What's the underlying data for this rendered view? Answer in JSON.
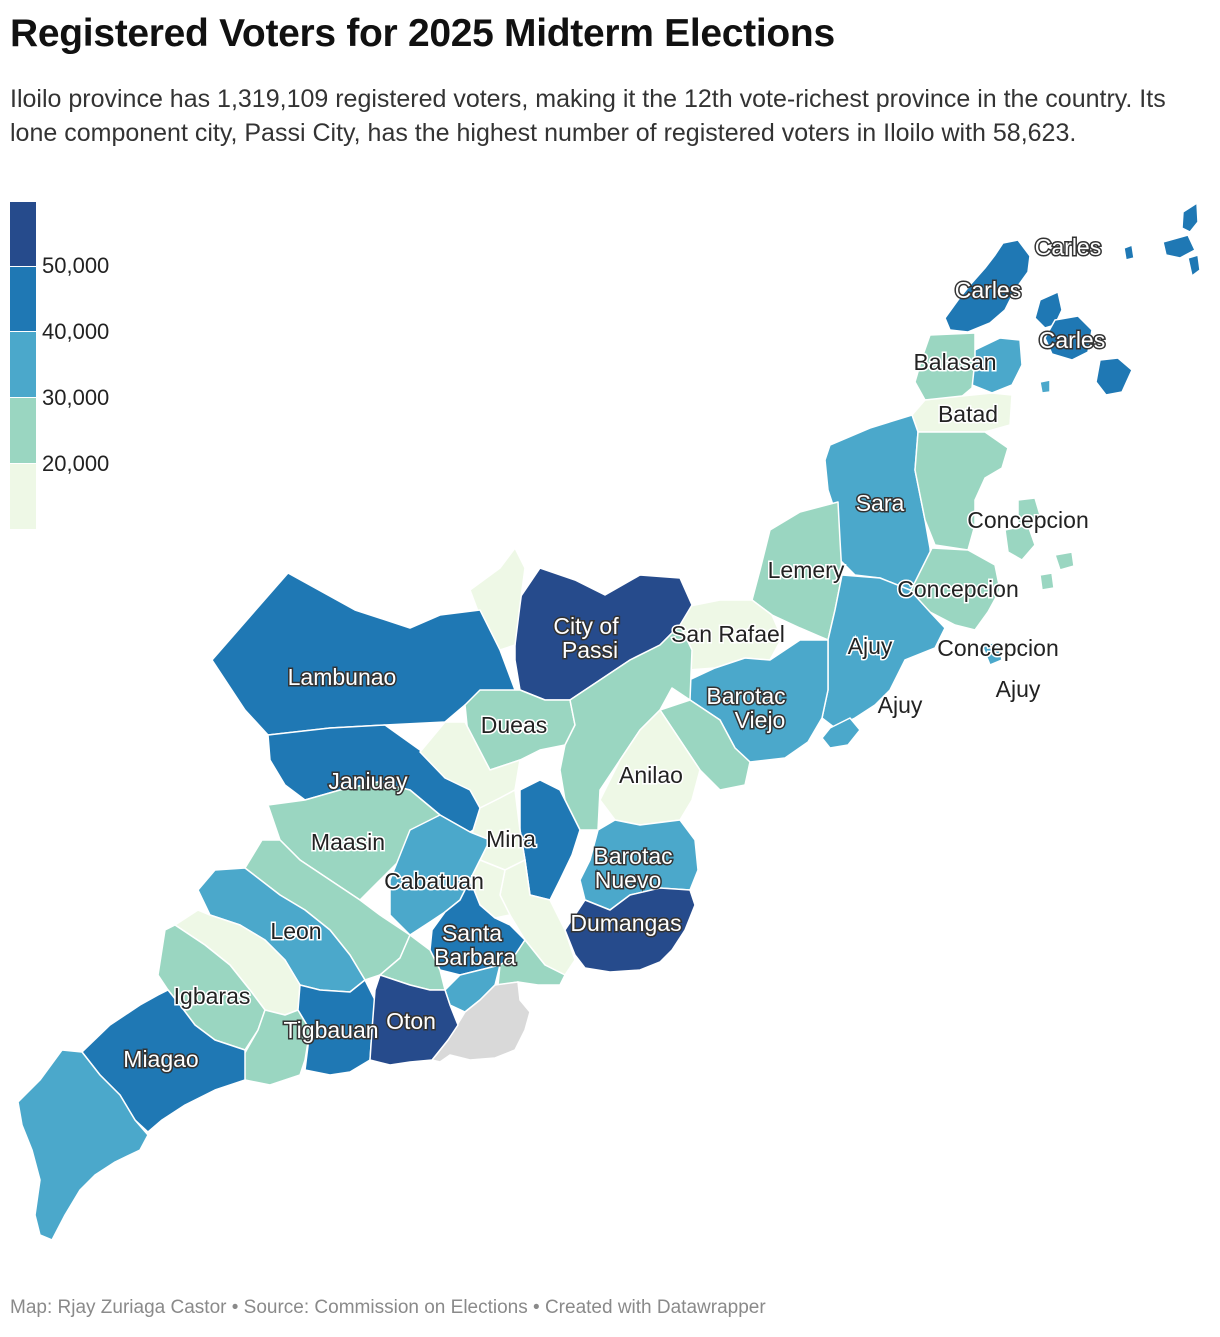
{
  "title": "Registered Voters for 2025 Midterm Elections",
  "subtitle": "Iloilo province has 1,319,109 registered voters, making it the 12th vote-richest province in the country. Its lone component city, Passi City, has the highest number of registered voters in Iloilo with 58,623.",
  "legend": {
    "ticks": [
      "50,000",
      "40,000",
      "30,000",
      "20,000"
    ],
    "colors": [
      "#264b8c",
      "#1f78b4",
      "#4ba8cb",
      "#9ad6c1",
      "#eef8e6"
    ]
  },
  "colors": {
    "bin5": "#264b8c",
    "bin4": "#1f78b4",
    "bin3": "#4ba8cb",
    "bin2": "#9ad6c1",
    "bin1": "#eef8e6",
    "nodata": "#d9d9d9",
    "border": "#ffffff"
  },
  "labels": {
    "carles": "Carles",
    "balasan": "Balasan",
    "batad": "Batad",
    "sara": "Sara",
    "concepcion": "Concepcion",
    "lemery": "Lemery",
    "ajuy": "Ajuy",
    "san_rafael": "San Rafael",
    "city_of_passi_1": "City of",
    "city_of_passi_2": "Passi",
    "lambunao": "Lambunao",
    "dueas": "Dueas",
    "barotac_viejo_1": "Barotac",
    "barotac_viejo_2": "Viejo",
    "anilao": "Anilao",
    "janiuay": "Janiuay",
    "mina": "Mina",
    "maasin": "Maasin",
    "barotac_nuevo_1": "Barotac",
    "barotac_nuevo_2": "Nuevo",
    "cabatuan": "Cabatuan",
    "dumangas": "Dumangas",
    "leon": "Leon",
    "santa_barbara_1": "Santa",
    "santa_barbara_2": "Barbara",
    "igbaras": "Igbaras",
    "oton": "Oton",
    "tigbauan": "Tigbauan",
    "miagao": "Miagao"
  },
  "footer": "Map: Rjay Zuriaga Castor • Source: Commission on Elections • Created with Datawrapper"
}
